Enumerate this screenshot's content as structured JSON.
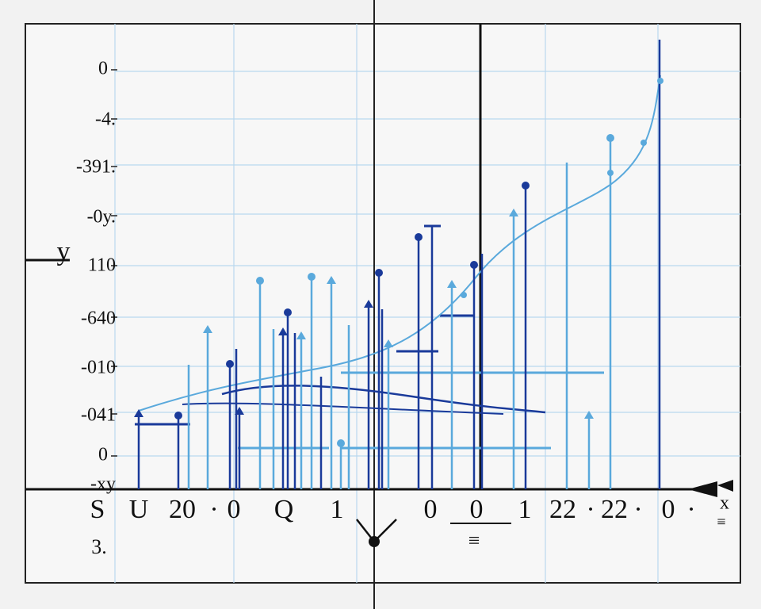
{
  "y_axis": {
    "title": "y",
    "tick_labels": [
      "0",
      "-4.",
      "-391.",
      "-0y.",
      "110",
      "-640",
      "-010",
      "-041",
      "0",
      "-xy"
    ]
  },
  "x_axis": {
    "title": "x",
    "tick_labels": [
      "S",
      "U",
      "20",
      "·",
      "0",
      "Q",
      "1",
      "0",
      "0",
      "1",
      "22",
      "·",
      "22",
      "·",
      "0",
      "·"
    ]
  },
  "extra_labels": [
    "3.",
    "≡",
    "≡"
  ]
}
